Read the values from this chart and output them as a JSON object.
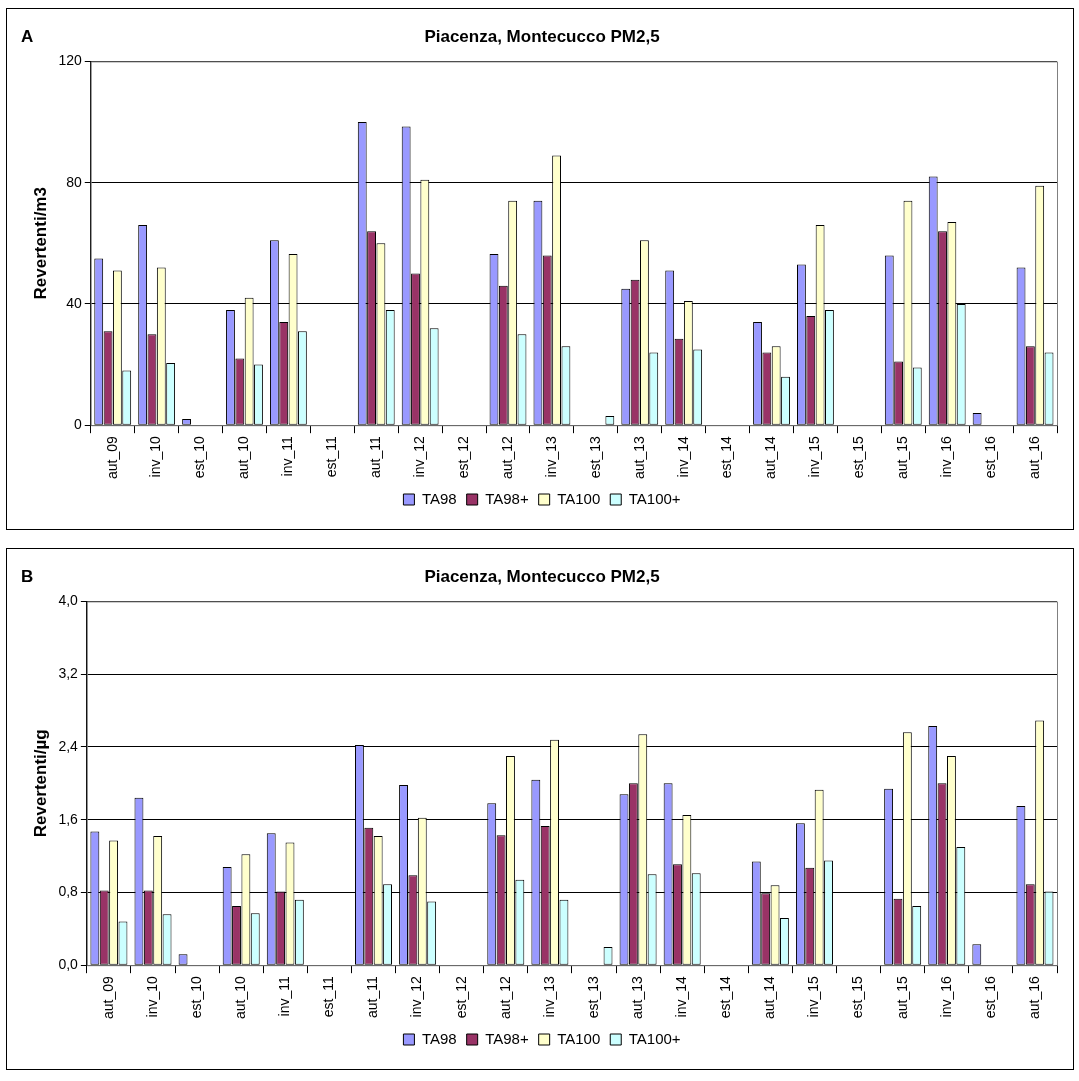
{
  "chart_data": [
    {
      "type": "bar",
      "title": "Piacenza, Montecucco PM2,5",
      "ylabel": "Revertenti/m3",
      "annotations": [
        "A"
      ],
      "categories": [
        "aut_09",
        "inv_10",
        "est_10",
        "aut_10",
        "inv_11",
        "est_11",
        "aut_11",
        "inv_12",
        "est_12",
        "aut_12",
        "inv_13",
        "est_13",
        "aut_13",
        "inv_14",
        "est_14",
        "aut_14",
        "inv_15",
        "est_15",
        "aut_15",
        "inv_16",
        "est_16",
        "aut_16"
      ],
      "series": [
        {
          "name": "TA98",
          "color": "#9999ff",
          "values": [
            55,
            66,
            2,
            38,
            61,
            null,
            100,
            98.5,
            null,
            56.5,
            74,
            null,
            45,
            51,
            null,
            34,
            53,
            null,
            56,
            82,
            4,
            52
          ]
        },
        {
          "name": "TA98+",
          "color": "#993366",
          "values": [
            31,
            30,
            null,
            22,
            34,
            null,
            64,
            50,
            null,
            46,
            56,
            null,
            48,
            28.5,
            null,
            24,
            36,
            null,
            21,
            64,
            null,
            26
          ]
        },
        {
          "name": "TA100",
          "color": "#ffffcc",
          "values": [
            51,
            52,
            null,
            42,
            56.5,
            null,
            60,
            81,
            null,
            74,
            89,
            null,
            61,
            41,
            null,
            26,
            66,
            null,
            74,
            67,
            null,
            79
          ]
        },
        {
          "name": "TA100+",
          "color": "#ccffff",
          "values": [
            18,
            20.5,
            null,
            20,
            31,
            null,
            38,
            32,
            null,
            30,
            26,
            3,
            24,
            25,
            null,
            16,
            38,
            null,
            19,
            40,
            null,
            24
          ]
        }
      ],
      "ylim": [
        0,
        120
      ],
      "yticks": [
        0,
        40,
        80,
        120
      ],
      "grid": "y",
      "legend": "bottom"
    },
    {
      "type": "bar",
      "title": "Piacenza, Montecucco PM2,5",
      "ylabel": "Revertenti/µg",
      "annotations": [
        "B"
      ],
      "categories": [
        "aut_09",
        "inv_10",
        "est_10",
        "aut_10",
        "inv_11",
        "est_11",
        "aut_11",
        "inv_12",
        "est_12",
        "aut_12",
        "inv_13",
        "est_13",
        "aut_13",
        "inv_14",
        "est_14",
        "aut_14",
        "inv_15",
        "est_15",
        "aut_15",
        "inv_16",
        "est_16",
        "aut_16"
      ],
      "series": [
        {
          "name": "TA98",
          "color": "#9999ff",
          "values": [
            1.47,
            1.84,
            0.12,
            1.08,
            1.45,
            null,
            2.42,
            1.98,
            null,
            1.78,
            2.04,
            null,
            1.88,
            2.0,
            null,
            1.14,
            1.56,
            null,
            1.94,
            2.63,
            0.23,
            1.75
          ]
        },
        {
          "name": "TA98+",
          "color": "#993366",
          "values": [
            0.82,
            0.82,
            null,
            0.65,
            0.81,
            null,
            1.51,
            0.99,
            null,
            1.43,
            1.53,
            null,
            2.0,
            1.11,
            null,
            0.79,
            1.07,
            null,
            0.73,
            2.0,
            null,
            0.89
          ]
        },
        {
          "name": "TA100",
          "color": "#ffffcc",
          "values": [
            1.37,
            1.42,
            null,
            1.22,
            1.35,
            null,
            1.42,
            1.62,
            null,
            2.3,
            2.48,
            null,
            2.54,
            1.65,
            null,
            0.88,
            1.93,
            null,
            2.56,
            2.3,
            null,
            2.69
          ]
        },
        {
          "name": "TA100+",
          "color": "#ccffff",
          "values": [
            0.48,
            0.56,
            null,
            0.57,
            0.72,
            null,
            0.89,
            0.7,
            null,
            0.94,
            0.72,
            0.2,
            1.0,
            1.01,
            null,
            0.52,
            1.15,
            null,
            0.65,
            1.3,
            null,
            0.81
          ]
        }
      ],
      "ylim": [
        0,
        4
      ],
      "yticks": [
        {
          "value": 0,
          "label": "0,0"
        },
        {
          "value": 0.8,
          "label": "0,8"
        },
        {
          "value": 1.6,
          "label": "1,6"
        },
        {
          "value": 2.4,
          "label": "2,4"
        },
        {
          "value": 3.2,
          "label": "3,2"
        },
        {
          "value": 4,
          "label": "4,0"
        }
      ],
      "grid": "y",
      "legend": "bottom"
    }
  ]
}
